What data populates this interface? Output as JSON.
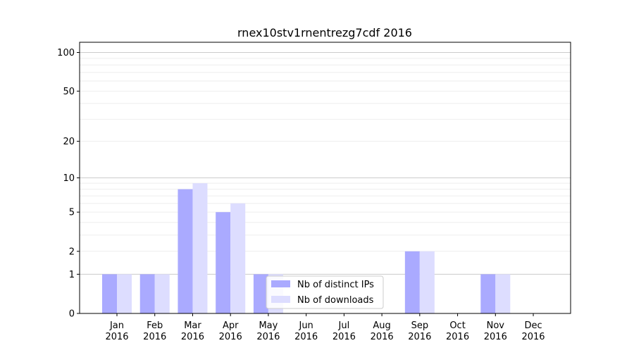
{
  "chart_data": {
    "type": "bar",
    "title": "rnex10stv1rnentrezg7cdf 2016",
    "xlabel": "",
    "ylabel": "",
    "categories": [
      [
        "Jan",
        "2016"
      ],
      [
        "Feb",
        "2016"
      ],
      [
        "Mar",
        "2016"
      ],
      [
        "Apr",
        "2016"
      ],
      [
        "May",
        "2016"
      ],
      [
        "Jun",
        "2016"
      ],
      [
        "Jul",
        "2016"
      ],
      [
        "Aug",
        "2016"
      ],
      [
        "Sep",
        "2016"
      ],
      [
        "Oct",
        "2016"
      ],
      [
        "Nov",
        "2016"
      ],
      [
        "Dec",
        "2016"
      ]
    ],
    "series": [
      {
        "name": "Nb of distinct IPs",
        "color": "#aaaaff",
        "values": [
          1,
          1,
          8,
          5,
          1,
          0,
          0,
          0,
          2,
          0,
          1,
          0
        ]
      },
      {
        "name": "Nb of downloads",
        "color": "#ddddff",
        "values": [
          1,
          1,
          9,
          6,
          1,
          0,
          0,
          0,
          2,
          0,
          1,
          0
        ]
      }
    ],
    "y_scale": "log(1+y)",
    "ylim": [
      0,
      120
    ],
    "yticks": [
      "0",
      "1",
      "2",
      "5",
      "10",
      "20",
      "50",
      "100"
    ],
    "grid": true,
    "legend_position": "lower-center"
  }
}
